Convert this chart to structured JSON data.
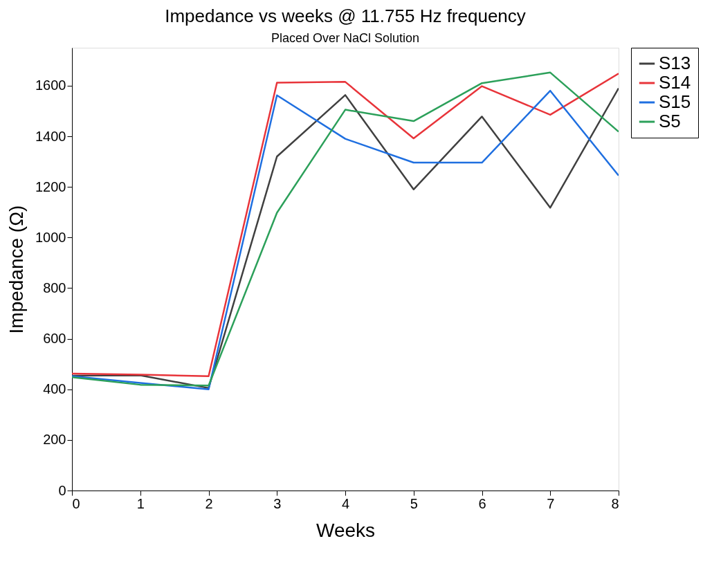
{
  "chart_data": {
    "type": "line",
    "title": "Impedance vs weeks @ 11.755 Hz frequency",
    "subtitle": "Placed Over NaCl Solution",
    "xlabel": "Weeks",
    "ylabel": "Impedance (Ω)",
    "x": [
      0,
      1,
      2,
      3,
      4,
      5,
      6,
      7,
      8
    ],
    "series": [
      {
        "name": "S13",
        "color": "#404040",
        "values": [
          454,
          455,
          405,
          1320,
          1563,
          1190,
          1478,
          1118,
          1590
        ]
      },
      {
        "name": "S14",
        "color": "#e8343a",
        "values": [
          462,
          458,
          452,
          1612,
          1615,
          1392,
          1598,
          1485,
          1648
        ]
      },
      {
        "name": "S15",
        "color": "#1f6fe0",
        "values": [
          452,
          425,
          400,
          1562,
          1390,
          1296,
          1296,
          1580,
          1245
        ]
      },
      {
        "name": "S5",
        "color": "#2ca05a",
        "values": [
          448,
          418,
          415,
          1098,
          1505,
          1460,
          1610,
          1652,
          1418
        ]
      }
    ],
    "xlim": [
      0,
      8
    ],
    "xticks": [
      0,
      1,
      2,
      3,
      4,
      5,
      6,
      7,
      8
    ],
    "ylim": [
      0,
      1750
    ],
    "yticks": [
      0,
      200,
      400,
      600,
      800,
      1000,
      1200,
      1400,
      1600
    ],
    "grid": false,
    "legend": "right",
    "marker": "none",
    "line_style": "solid"
  }
}
